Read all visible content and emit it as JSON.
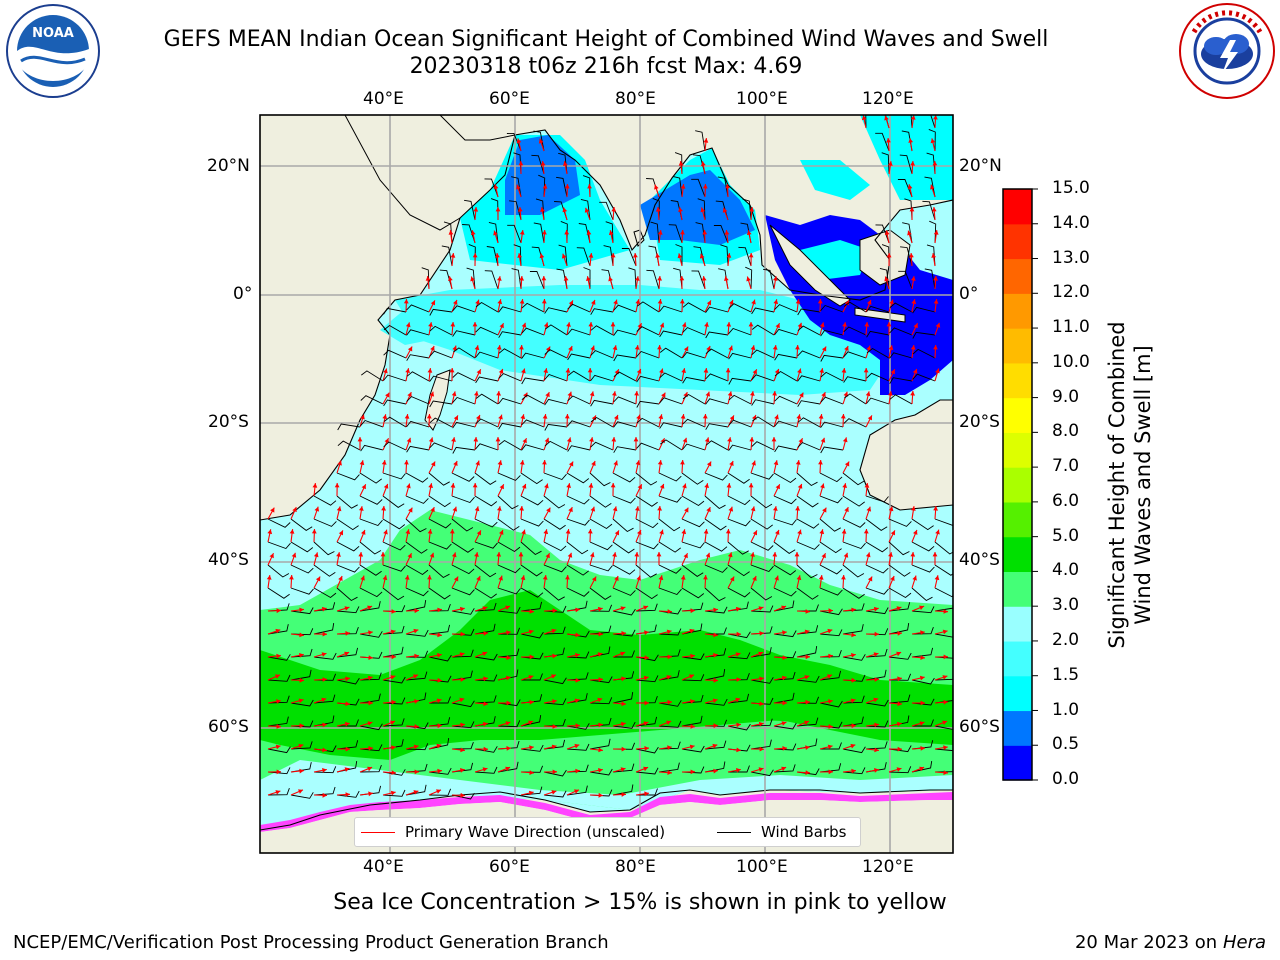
{
  "header": {
    "title_line1": "GEFS MEAN Indian Ocean Significant Height of Combined Wind Waves and Swell",
    "title_line2": "20230318 t06z 216h fcst   Max: 4.69"
  },
  "logos": {
    "noaa_text": "NOAA",
    "noaa_ring": "NATIONAL OCEANIC AND ATMOSPHERIC ADMINISTRATION · U.S. DEPARTMENT OF COMMERCE",
    "nws_ring": "NATIONAL WEATHER SERVICE"
  },
  "axes": {
    "lon_labels": [
      "40°E",
      "60°E",
      "80°E",
      "100°E",
      "120°E"
    ],
    "lat_labels": [
      "20°N",
      "0°",
      "20°S",
      "40°S",
      "60°S"
    ]
  },
  "colorbar": {
    "label_line1": "Significant Height of Combined",
    "label_line2": "Wind Waves and Swell [m]",
    "ticks": [
      "0.0",
      "0.5",
      "1.0",
      "1.5",
      "2.0",
      "3.0",
      "4.0",
      "5.0",
      "6.0",
      "7.0",
      "8.0",
      "9.0",
      "10.0",
      "11.0",
      "12.0",
      "13.0",
      "14.0",
      "15.0"
    ],
    "colors": [
      "#0000ff",
      "#0077ff",
      "#00ffff",
      "#44ffff",
      "#99ffff",
      "#44ff77",
      "#00e000",
      "#55f000",
      "#aaff00",
      "#ddff00",
      "#ffff00",
      "#ffdd00",
      "#ffbb00",
      "#ff9900",
      "#ff6600",
      "#ff3300",
      "#ff0000"
    ]
  },
  "legend": {
    "wave_label": "Primary Wave Direction (unscaled)",
    "wind_label": "Wind Barbs",
    "wave_color": "#ff0000",
    "wind_color": "#000000"
  },
  "footer": {
    "note": "Sea Ice Concentration > 15% is shown in pink to yellow",
    "credit": "NCEP/EMC/Verification Post Processing Product Generation Branch",
    "date": "20 Mar 2023 on",
    "machine": "Hera"
  },
  "colors": {
    "land": "#efefdf",
    "ocean_light": "#aaffff",
    "ocean_cyan": "#44ffff",
    "ocean_mid": "#00ffff",
    "ocean_blue": "#0077ff",
    "ocean_deep": "#0000ff",
    "wave_green": "#44ff77",
    "wave_green_dark": "#00e000",
    "ice": "#ff44ff"
  }
}
